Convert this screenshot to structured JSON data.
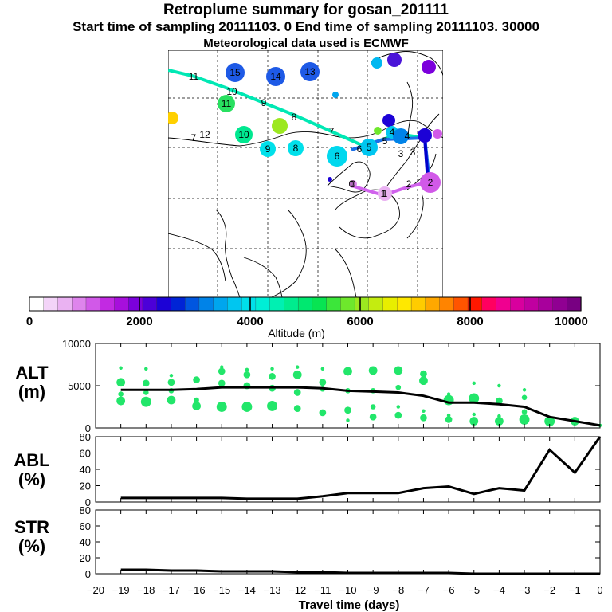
{
  "header": {
    "title": "Retroplume summary for gosan_201111",
    "sampling": "Start time of sampling 20111103.     0     End time of sampling 20111103. 30000",
    "met": "Meteorological data used is ECMWF"
  },
  "colorbar": {
    "ticks": [
      "0",
      "2000",
      "4000",
      "6000",
      "8000",
      "10000"
    ],
    "label": "Altitude (m)",
    "colors": [
      "#ffffff",
      "#f3d4f8",
      "#eab2f2",
      "#de84ec",
      "#d159e8",
      "#c22ae2",
      "#a70fdc",
      "#7b00dc",
      "#4c00d8",
      "#1c02d6",
      "#0024d6",
      "#0056e0",
      "#0083e8",
      "#00a6ee",
      "#00c6f0",
      "#00e0ea",
      "#00eed6",
      "#00f0b2",
      "#00ec8e",
      "#00e870",
      "#08e452",
      "#3ce63a",
      "#6ee82c",
      "#9ce820",
      "#c4ec10",
      "#e8ee00",
      "#ffe800",
      "#ffcc00",
      "#ffa800",
      "#ff8400",
      "#ff5400",
      "#ff1800",
      "#ff0060",
      "#f00090",
      "#d8009e",
      "#c000a0",
      "#a8009c",
      "#900092",
      "#780082"
    ]
  },
  "map": {
    "trajectory_labels": [
      "11",
      "10",
      "9",
      "8",
      "7",
      "6",
      "5",
      "4",
      "3",
      "2",
      "1",
      "0"
    ],
    "cluster_labels": [
      "15",
      "14",
      "13",
      "12",
      "11",
      "10",
      "9",
      "8",
      "7",
      "6",
      "5",
      "4",
      "3",
      "2",
      "1",
      "0"
    ]
  },
  "panels": [
    {
      "label": "ALT",
      "unit": "(m)"
    },
    {
      "label": "ABL",
      "unit": "(%)"
    },
    {
      "label": "STR",
      "unit": "(%)"
    }
  ],
  "xaxis": {
    "title": "Travel time (days)",
    "ticks": [
      "−20",
      "−19",
      "−18",
      "−17",
      "−16",
      "−15",
      "−14",
      "−13",
      "−12",
      "−11",
      "−10",
      "−9",
      "−8",
      "−7",
      "−6",
      "−5",
      "−4",
      "−3",
      "−2",
      "−1",
      "0"
    ]
  },
  "chart_data": [
    {
      "type": "line",
      "title": "ALT",
      "ylabel": "(m)",
      "xlabel": "Travel time (days)",
      "ylim": [
        0,
        10000
      ],
      "yticks": [
        "0",
        "5000",
        "10000"
      ],
      "x": [
        -19,
        -18,
        -17,
        -16,
        -15,
        -14,
        -13,
        -12,
        -11,
        -10,
        -9,
        -8,
        -7,
        -6,
        -5,
        -4,
        -3,
        -2,
        -1,
        0
      ],
      "series": [
        {
          "name": "mean altitude",
          "values": [
            4500,
            4500,
            4500,
            4600,
            4800,
            4800,
            4800,
            4800,
            4700,
            4400,
            4300,
            4200,
            3800,
            3000,
            3000,
            2800,
            2500,
            1300,
            800,
            300
          ]
        }
      ],
      "scatter": [
        {
          "x": -19,
          "y": 7100,
          "s": 1
        },
        {
          "x": -19,
          "y": 5400,
          "s": 4
        },
        {
          "x": -19,
          "y": 4000,
          "s": 2
        },
        {
          "x": -19,
          "y": 3200,
          "s": 4
        },
        {
          "x": -18,
          "y": 7000,
          "s": 1
        },
        {
          "x": -18,
          "y": 5300,
          "s": 3
        },
        {
          "x": -18,
          "y": 4200,
          "s": 2
        },
        {
          "x": -18,
          "y": 3100,
          "s": 5
        },
        {
          "x": -17,
          "y": 6200,
          "s": 1
        },
        {
          "x": -17,
          "y": 5400,
          "s": 3
        },
        {
          "x": -17,
          "y": 4400,
          "s": 2
        },
        {
          "x": -17,
          "y": 3300,
          "s": 4
        },
        {
          "x": -16,
          "y": 5700,
          "s": 3
        },
        {
          "x": -16,
          "y": 3300,
          "s": 2
        },
        {
          "x": -16,
          "y": 2600,
          "s": 4
        },
        {
          "x": -15,
          "y": 7200,
          "s": 1
        },
        {
          "x": -15,
          "y": 6700,
          "s": 3
        },
        {
          "x": -15,
          "y": 5300,
          "s": 3
        },
        {
          "x": -15,
          "y": 2500,
          "s": 5
        },
        {
          "x": -14,
          "y": 6900,
          "s": 1
        },
        {
          "x": -14,
          "y": 6300,
          "s": 3
        },
        {
          "x": -14,
          "y": 5000,
          "s": 3
        },
        {
          "x": -14,
          "y": 2500,
          "s": 5
        },
        {
          "x": -13,
          "y": 7000,
          "s": 1
        },
        {
          "x": -13,
          "y": 6100,
          "s": 3
        },
        {
          "x": -13,
          "y": 4700,
          "s": 3
        },
        {
          "x": -13,
          "y": 2600,
          "s": 5
        },
        {
          "x": -12,
          "y": 7200,
          "s": 1
        },
        {
          "x": -12,
          "y": 6300,
          "s": 4
        },
        {
          "x": -12,
          "y": 4200,
          "s": 3
        },
        {
          "x": -12,
          "y": 2300,
          "s": 3
        },
        {
          "x": -11,
          "y": 7000,
          "s": 1
        },
        {
          "x": -11,
          "y": 5400,
          "s": 3
        },
        {
          "x": -11,
          "y": 4600,
          "s": 2
        },
        {
          "x": -11,
          "y": 1800,
          "s": 3
        },
        {
          "x": -10,
          "y": 7000,
          "s": 1
        },
        {
          "x": -10,
          "y": 6700,
          "s": 4
        },
        {
          "x": -10,
          "y": 4400,
          "s": 2
        },
        {
          "x": -10,
          "y": 2100,
          "s": 3
        },
        {
          "x": -10,
          "y": 900,
          "s": 1
        },
        {
          "x": -9,
          "y": 6800,
          "s": 4
        },
        {
          "x": -9,
          "y": 4400,
          "s": 2
        },
        {
          "x": -9,
          "y": 2500,
          "s": 2
        },
        {
          "x": -9,
          "y": 1300,
          "s": 3
        },
        {
          "x": -8,
          "y": 6800,
          "s": 4
        },
        {
          "x": -8,
          "y": 4800,
          "s": 2
        },
        {
          "x": -8,
          "y": 2500,
          "s": 1
        },
        {
          "x": -8,
          "y": 1500,
          "s": 3
        },
        {
          "x": -7,
          "y": 6400,
          "s": 3
        },
        {
          "x": -7,
          "y": 5600,
          "s": 4
        },
        {
          "x": -7,
          "y": 2000,
          "s": 1
        },
        {
          "x": -7,
          "y": 1200,
          "s": 3
        },
        {
          "x": -6,
          "y": 4000,
          "s": 1
        },
        {
          "x": -6,
          "y": 3300,
          "s": 5
        },
        {
          "x": -6,
          "y": 1500,
          "s": 1
        },
        {
          "x": -6,
          "y": 1000,
          "s": 3
        },
        {
          "x": -5,
          "y": 5300,
          "s": 1
        },
        {
          "x": -5,
          "y": 3500,
          "s": 5
        },
        {
          "x": -5,
          "y": 1600,
          "s": 1
        },
        {
          "x": -5,
          "y": 800,
          "s": 4
        },
        {
          "x": -4,
          "y": 5000,
          "s": 1
        },
        {
          "x": -4,
          "y": 3200,
          "s": 3
        },
        {
          "x": -4,
          "y": 1400,
          "s": 1
        },
        {
          "x": -4,
          "y": 800,
          "s": 4
        },
        {
          "x": -3,
          "y": 4500,
          "s": 1
        },
        {
          "x": -3,
          "y": 3600,
          "s": 2
        },
        {
          "x": -3,
          "y": 1900,
          "s": 2
        },
        {
          "x": -3,
          "y": 1000,
          "s": 5
        },
        {
          "x": -2,
          "y": 1200,
          "s": 1
        },
        {
          "x": -2,
          "y": 800,
          "s": 5
        },
        {
          "x": -1,
          "y": 800,
          "s": 4
        },
        {
          "x": 0,
          "y": 300,
          "s": 1
        }
      ]
    },
    {
      "type": "line",
      "title": "ABL",
      "ylabel": "(%)",
      "ylim": [
        0,
        80
      ],
      "yticks": [
        "0",
        "20",
        "40",
        "60",
        "80"
      ],
      "x": [
        -19,
        -18,
        -17,
        -16,
        -15,
        -14,
        -13,
        -12,
        -11,
        -10,
        -9,
        -8,
        -7,
        -6,
        -5,
        -4,
        -3,
        -2,
        -1,
        0
      ],
      "series": [
        {
          "name": "ABL fraction",
          "values": [
            5,
            5,
            5,
            5,
            5,
            4,
            4,
            4,
            7,
            11,
            11,
            11,
            17,
            19,
            10,
            17,
            14,
            64,
            36,
            80
          ]
        }
      ]
    },
    {
      "type": "line",
      "title": "STR",
      "ylabel": "(%)",
      "ylim": [
        0,
        80
      ],
      "yticks": [
        "0",
        "20",
        "40",
        "60",
        "80"
      ],
      "x": [
        -19,
        -18,
        -17,
        -16,
        -15,
        -14,
        -13,
        -12,
        -11,
        -10,
        -9,
        -8,
        -7,
        -6,
        -5,
        -4,
        -3,
        -2,
        -1,
        0
      ],
      "series": [
        {
          "name": "stratospheric fraction",
          "values": [
            5,
            5,
            4,
            4,
            3,
            3,
            3,
            2,
            2,
            1,
            1,
            1,
            1,
            1,
            0,
            0,
            0,
            0,
            0,
            0
          ]
        }
      ]
    }
  ]
}
